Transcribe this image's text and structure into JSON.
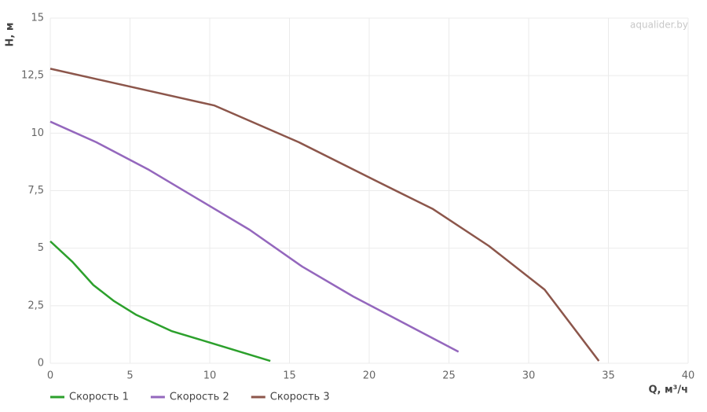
{
  "chart_data": {
    "type": "line",
    "watermark": "aqualider.by",
    "y_label": "H, м",
    "x_label": "Q, м³/ч",
    "xlim": [
      0,
      40
    ],
    "xticks": [
      0,
      5,
      10,
      15,
      20,
      25,
      30,
      35,
      40
    ],
    "ylim": [
      0,
      15
    ],
    "yticks": [
      0,
      {
        "value": 2.5,
        "label": "2,5"
      },
      5,
      {
        "value": 7.5,
        "label": "7,5"
      },
      10,
      {
        "value": 12.5,
        "label": "12,5"
      },
      15
    ],
    "grid": true,
    "legend": "bottom-left",
    "series": [
      {
        "name": "Скорость 1",
        "color": "#2ca02c",
        "x": [
          0,
          1.4,
          2.7,
          4,
          5.4,
          7.6,
          10,
          13.8
        ],
        "values": [
          5.3,
          4.4,
          3.4,
          2.7,
          2.1,
          1.4,
          0.9,
          0.1
        ]
      },
      {
        "name": "Скорость 2",
        "color": "#9467bd",
        "x": [
          0,
          2.9,
          6.2,
          12.5,
          15.8,
          19,
          25.6
        ],
        "values": [
          10.5,
          9.6,
          8.4,
          5.8,
          4.2,
          2.9,
          0.5
        ]
      },
      {
        "name": "Скорость 3",
        "color": "#8c564b",
        "x": [
          0,
          10.3,
          15.6,
          20.5,
          24,
          27.5,
          31,
          34.4
        ],
        "values": [
          12.8,
          11.2,
          9.6,
          7.9,
          6.7,
          5.1,
          3.2,
          0.1
        ]
      }
    ]
  }
}
